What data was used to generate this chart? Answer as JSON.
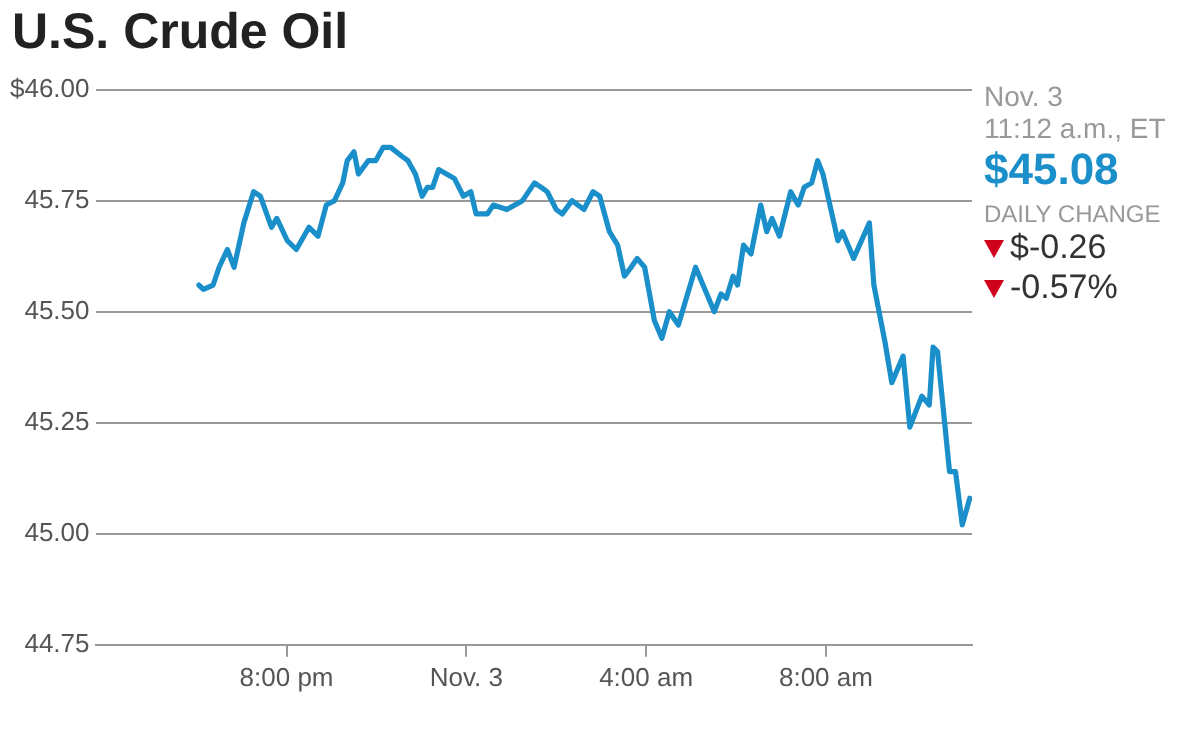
{
  "chart_data": {
    "type": "line",
    "title": "U.S. Crude Oil",
    "annotations": [
      "Nov. 3",
      "11:12 a.m., ET",
      "$45.08",
      "DAILY CHANGE",
      "$-0.26",
      "-0.57%"
    ],
    "xlim": [
      "--11-02T15:45",
      "--11-03T11:15"
    ],
    "xticks": [
      {
        "value": "--11-02T20:00",
        "label": "8:00 pm"
      },
      {
        "value": "--11-03T00:00",
        "label": "Nov. 3"
      },
      {
        "value": "--11-03T04:00",
        "label": "4:00 am"
      },
      {
        "value": "--11-03T08:00",
        "label": "8:00 am"
      }
    ],
    "ylim": [
      44.75,
      46
    ],
    "yticks": [
      {
        "value": 44.75,
        "label": "44.75"
      },
      {
        "value": 45,
        "label": "45.00"
      },
      {
        "value": 45.25,
        "label": "45.25"
      },
      {
        "value": 45.5,
        "label": "45.50"
      },
      {
        "value": 45.75,
        "label": "45.75"
      },
      {
        "value": 46,
        "label": "$46.00"
      }
    ],
    "grid": "y",
    "marker": "none",
    "line_style": "solid",
    "legend": false,
    "series": [
      {
        "color": "#1a8fca",
        "x": [
          "--11-02T18:03",
          "--11-02T18:09",
          "--11-02T18:22",
          "--11-02T18:30",
          "--11-02T18:41",
          "--11-02T18:50",
          "--11-02T19:03",
          "--11-02T19:16",
          "--11-02T19:25",
          "--11-02T19:40",
          "--11-02T19:47",
          "--11-02T20:01",
          "--11-02T20:13",
          "--11-02T20:30",
          "--11-02T20:42",
          "--11-02T20:53",
          "--11-02T21:04",
          "--11-02T21:15",
          "--11-02T21:21",
          "--11-02T21:30",
          "--11-02T21:36",
          "--11-02T21:49",
          "--11-02T21:59",
          "--11-02T22:09",
          "--11-02T22:19",
          "--11-02T22:34",
          "--11-02T22:42",
          "--11-02T22:52",
          "--11-02T23:01",
          "--11-02T23:08",
          "--11-02T23:15",
          "--11-02T23:23",
          "--11-02T23:44",
          "--11-02T23:56",
          "--11-03T00:06",
          "--11-03T00:13",
          "--11-03T00:28",
          "--11-03T00:36",
          "--11-03T00:54",
          "--11-03T01:15",
          "--11-03T01:31",
          "--11-03T01:40",
          "--11-03T01:48",
          "--11-03T02:00",
          "--11-03T02:08",
          "--11-03T02:21",
          "--11-03T02:37",
          "--11-03T02:49",
          "--11-03T02:58",
          "--11-03T03:11",
          "--11-03T03:22",
          "--11-03T03:31",
          "--11-03T03:40",
          "--11-03T03:48",
          "--11-03T03:58",
          "--11-03T04:11",
          "--11-03T04:21",
          "--11-03T04:31",
          "--11-03T04:43",
          "--11-03T05:06",
          "--11-03T05:31",
          "--11-03T05:40",
          "--11-03T05:47",
          "--11-03T05:56",
          "--11-03T06:02",
          "--11-03T06:10",
          "--11-03T06:20",
          "--11-03T06:33",
          "--11-03T06:41",
          "--11-03T06:48",
          "--11-03T06:58",
          "--11-03T07:13",
          "--11-03T07:23",
          "--11-03T07:31",
          "--11-03T07:41",
          "--11-03T07:49",
          "--11-03T07:56",
          "--11-03T08:08",
          "--11-03T08:16",
          "--11-03T08:22",
          "--11-03T08:37",
          "--11-03T08:58",
          "--11-03T09:04",
          "--11-03T09:19",
          "--11-03T09:28",
          "--11-03T09:43",
          "--11-03T09:52",
          "--11-03T10:08",
          "--11-03T10:18",
          "--11-03T10:23",
          "--11-03T10:29",
          "--11-03T10:45",
          "--11-03T10:53",
          "--11-03T11:02",
          "--11-03T11:12"
        ],
        "values": [
          45.56,
          45.55,
          45.56,
          45.6,
          45.64,
          45.6,
          45.7,
          45.77,
          45.76,
          45.69,
          45.71,
          45.66,
          45.64,
          45.69,
          45.67,
          45.74,
          45.75,
          45.79,
          45.84,
          45.86,
          45.81,
          45.84,
          45.84,
          45.87,
          45.87,
          45.85,
          45.84,
          45.81,
          45.76,
          45.78,
          45.78,
          45.82,
          45.8,
          45.76,
          45.77,
          45.72,
          45.72,
          45.74,
          45.73,
          45.75,
          45.79,
          45.78,
          45.77,
          45.73,
          45.72,
          45.75,
          45.73,
          45.77,
          45.76,
          45.68,
          45.65,
          45.58,
          45.6,
          45.62,
          45.6,
          45.48,
          45.44,
          45.5,
          45.47,
          45.6,
          45.5,
          45.54,
          45.53,
          45.58,
          45.56,
          45.65,
          45.63,
          45.74,
          45.68,
          45.71,
          45.67,
          45.77,
          45.74,
          45.78,
          45.79,
          45.84,
          45.81,
          45.72,
          45.66,
          45.68,
          45.62,
          45.7,
          45.56,
          45.43,
          45.34,
          45.4,
          45.24,
          45.31,
          45.29,
          45.42,
          45.41,
          45.14,
          45.14,
          45.02,
          45.08
        ]
      }
    ]
  }
}
